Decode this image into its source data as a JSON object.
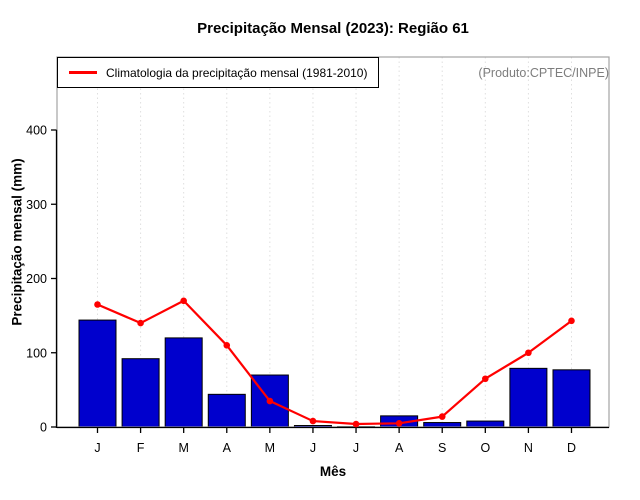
{
  "figure": {
    "title": "Precipitação Mensal (2023): Região 61",
    "watermark": "(Produto:CPTEC/INPE)"
  },
  "legend": {
    "label": "Climatologia da precipitação mensal (1981-2010)"
  },
  "colors": {
    "bar": "#0000CD",
    "bar_border": "#000000",
    "line": "#FF0000",
    "grid": "#DFDFDF",
    "box": "#A3A3A3",
    "axis": "#000000",
    "watermark": "#7D7D7D",
    "background": "#FFFFFF"
  },
  "chart_data": {
    "type": "bar",
    "categories": [
      "J",
      "F",
      "M",
      "A",
      "M",
      "J",
      "J",
      "A",
      "S",
      "O",
      "N",
      "D"
    ],
    "series": [
      {
        "name": "Precipitação mensal (2023)",
        "type": "bar",
        "color": "#0000CD",
        "values": [
          144,
          92,
          120,
          44,
          70,
          2,
          0.5,
          15,
          6,
          8,
          79,
          77
        ]
      },
      {
        "name": "Climatologia da precipitação mensal (1981-2010)",
        "type": "line",
        "marker": "circle",
        "color": "#FF0000",
        "values": [
          165,
          140,
          170,
          110,
          35,
          8,
          4,
          5,
          14,
          65,
          100,
          143
        ]
      }
    ],
    "title": "Precipitação Mensal (2023): Região 61",
    "xlabel": "Mês",
    "ylabel": "Precipitação mensal (mm)",
    "ylim": [
      0,
      500
    ],
    "yticks": [
      0,
      100,
      200,
      300,
      400
    ],
    "grid": "vertical-dotted",
    "legend_position": "top-left"
  }
}
